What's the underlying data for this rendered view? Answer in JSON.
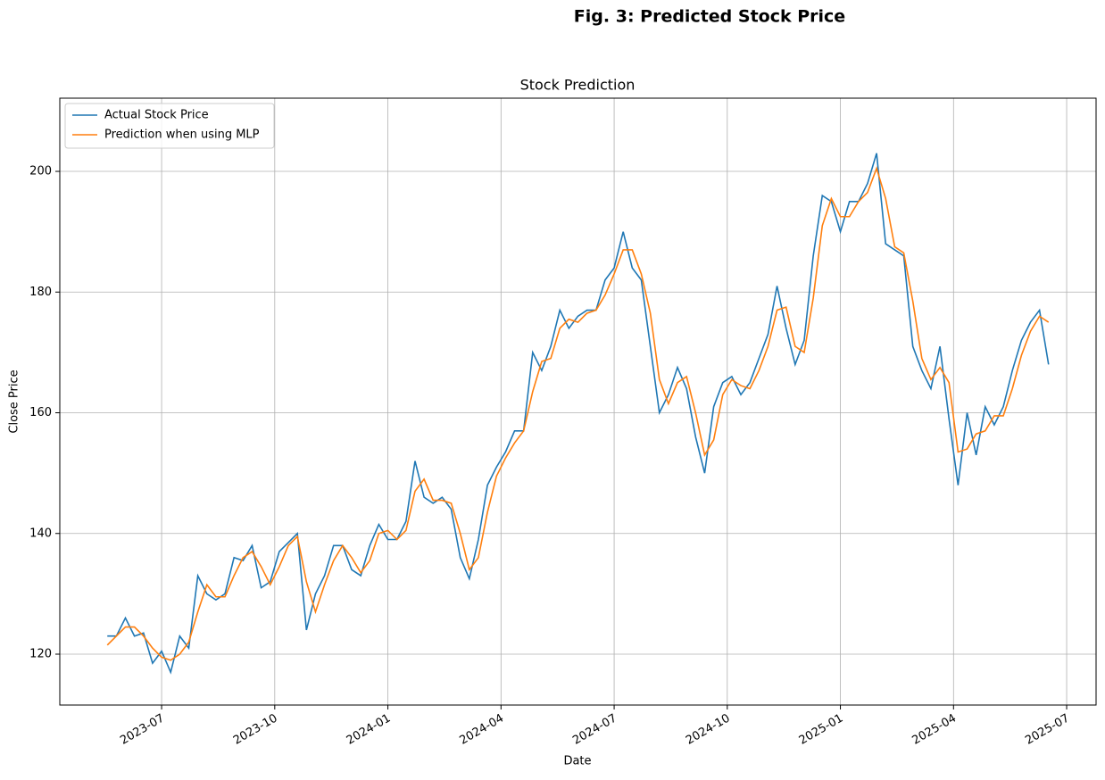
{
  "chart_data": {
    "type": "line",
    "suptitle": "Fig. 3: Predicted Stock Price",
    "title": "Stock Prediction",
    "xlabel": "Date",
    "ylabel": "Close Price",
    "x": [
      2023.38,
      2023.4,
      2023.42,
      2023.44,
      2023.46,
      2023.48,
      2023.5,
      2023.52,
      2023.54,
      2023.56,
      2023.58,
      2023.6,
      2023.62,
      2023.64,
      2023.66,
      2023.68,
      2023.7,
      2023.72,
      2023.74,
      2023.76,
      2023.78,
      2023.8,
      2023.82,
      2023.84,
      2023.86,
      2023.88,
      2023.9,
      2023.92,
      2023.94,
      2023.96,
      2023.98,
      2024.0,
      2024.02,
      2024.04,
      2024.06,
      2024.08,
      2024.1,
      2024.12,
      2024.14,
      2024.16,
      2024.18,
      2024.2,
      2024.22,
      2024.24,
      2024.26,
      2024.28,
      2024.3,
      2024.32,
      2024.34,
      2024.36,
      2024.38,
      2024.4,
      2024.42,
      2024.44,
      2024.46,
      2024.48,
      2024.5,
      2024.52,
      2024.54,
      2024.56,
      2024.58,
      2024.6,
      2024.62,
      2024.64,
      2024.66,
      2024.68,
      2024.7,
      2024.72,
      2024.74,
      2024.76,
      2024.78,
      2024.8,
      2024.82,
      2024.84,
      2024.86,
      2024.88,
      2024.9,
      2024.92,
      2024.94,
      2024.96,
      2024.98,
      2025.0,
      2025.02,
      2025.04,
      2025.06,
      2025.08,
      2025.1,
      2025.12,
      2025.14,
      2025.16,
      2025.18,
      2025.2,
      2025.22,
      2025.24,
      2025.26,
      2025.28,
      2025.3,
      2025.32,
      2025.34,
      2025.36,
      2025.38,
      2025.4,
      2025.42,
      2025.44,
      2025.46
    ],
    "series": [
      {
        "name": "Actual Stock Price",
        "color": "#1f77b4",
        "values": [
          123,
          123,
          126,
          123,
          123.5,
          118.5,
          120.5,
          117,
          123,
          121,
          133,
          130,
          129,
          130,
          136,
          135.5,
          138,
          131,
          132,
          137,
          138.5,
          140,
          124,
          130,
          133,
          138,
          138,
          134,
          133,
          138,
          141.5,
          139,
          139,
          142,
          152,
          146,
          145,
          146,
          144,
          136,
          132.5,
          139,
          148,
          151,
          153.5,
          157,
          157,
          170,
          167,
          171,
          177,
          174,
          176,
          177,
          177,
          182,
          184,
          190,
          184,
          182,
          171,
          160,
          163,
          167.5,
          164,
          156,
          150,
          161,
          165,
          166,
          163,
          165,
          169,
          173,
          181,
          174,
          168,
          172,
          186,
          196,
          195,
          190,
          195,
          195,
          198,
          203,
          188,
          187,
          186,
          171,
          167,
          164,
          171,
          159,
          148,
          160,
          153,
          161,
          158,
          161,
          167,
          172,
          175,
          177,
          168
        ]
      },
      {
        "name": "Prediction when using MLP",
        "color": "#ff7f0e",
        "values": [
          121.5,
          123,
          124.5,
          124.5,
          123,
          121,
          119.5,
          119,
          120,
          122,
          127,
          131.5,
          129.5,
          129.5,
          133,
          136,
          137,
          134.5,
          131.5,
          134.5,
          138,
          139.5,
          132,
          127,
          131.5,
          135.5,
          138,
          136,
          133.5,
          135.5,
          140,
          140.5,
          139,
          140.5,
          147,
          149,
          145.5,
          145.5,
          145,
          140,
          134,
          136,
          143.5,
          149.5,
          152.5,
          155,
          157,
          163.5,
          168.5,
          169,
          174,
          175.5,
          175,
          176.5,
          177,
          179.5,
          183,
          187,
          187,
          183,
          176.5,
          165.5,
          161.5,
          165,
          166,
          160,
          153,
          155.5,
          163,
          165.5,
          164.5,
          164,
          167,
          171,
          177,
          177.5,
          171,
          170,
          179,
          191,
          195.5,
          192.5,
          192.5,
          195,
          196.5,
          200.5,
          195.5,
          187.5,
          186.5,
          178.5,
          169,
          165.5,
          167.5,
          165,
          153.5,
          154,
          156.5,
          157,
          159.5,
          159.5,
          164,
          169.5,
          173.5,
          176,
          175
        ]
      }
    ],
    "xlim": [
      2023.275,
      2025.565
    ],
    "xticks": [
      {
        "value": 2023.5,
        "label": "2023-07"
      },
      {
        "value": 2023.75,
        "label": "2023-10"
      },
      {
        "value": 2024.0,
        "label": "2024-01"
      },
      {
        "value": 2024.25,
        "label": "2024-04"
      },
      {
        "value": 2024.5,
        "label": "2024-07"
      },
      {
        "value": 2024.75,
        "label": "2024-10"
      },
      {
        "value": 2025.0,
        "label": "2025-01"
      },
      {
        "value": 2025.25,
        "label": "2025-04"
      },
      {
        "value": 2025.5,
        "label": "2025-07"
      }
    ],
    "ylim": [
      111.57,
      212.13
    ],
    "yticks": [
      120,
      140,
      160,
      180,
      200
    ],
    "grid": true,
    "legend": "upper-left"
  }
}
